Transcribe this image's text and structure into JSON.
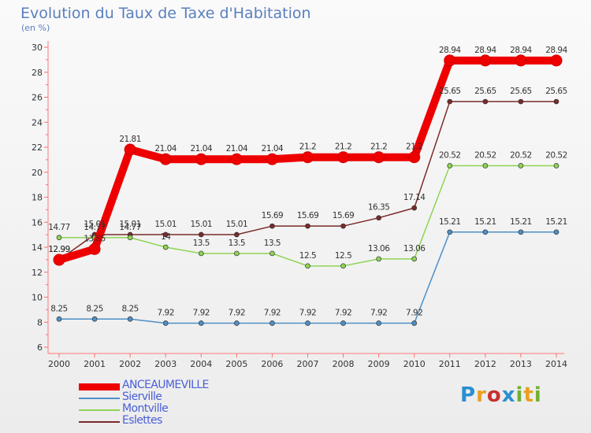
{
  "title": "Evolution du Taux de Taxe d'Habitation",
  "unit_label": "(en %)",
  "brand": {
    "text": "Proxiti",
    "letters": [
      "P",
      "r",
      "o",
      "x",
      "i",
      "t",
      "i"
    ],
    "colors": [
      "#2a8fd0",
      "#e8a020",
      "#c83030",
      "#2a8fd0",
      "#70b030",
      "#e8a020",
      "#70b030"
    ]
  },
  "chart_data": {
    "type": "line",
    "title": "Evolution du Taux de Taxe d'Habitation",
    "ylabel": "(en %)",
    "xlabel": "",
    "x": [
      "2000",
      "2001",
      "2002",
      "2003",
      "2004",
      "2005",
      "2006",
      "2007",
      "2008",
      "2009",
      "2010",
      "2011",
      "2012",
      "2013",
      "2014"
    ],
    "ylim": [
      6,
      30
    ],
    "yticks": [
      6,
      8,
      10,
      12,
      14,
      16,
      18,
      20,
      22,
      24,
      26,
      28,
      30
    ],
    "grid": false,
    "legend_position": "bottom-left",
    "series": [
      {
        "name": "ANCEAUMEVILLE",
        "color": "#ee0000",
        "style": "thick",
        "values": [
          12.99,
          13.85,
          21.81,
          21.04,
          21.04,
          21.04,
          21.04,
          21.2,
          21.2,
          21.2,
          21.2,
          28.94,
          28.94,
          28.94,
          28.94
        ],
        "labels": [
          "12.99",
          "13.85",
          "21.81",
          "21.04",
          "21.04",
          "21.04",
          "21.04",
          "21.2",
          "21.2",
          "21.2",
          "21.2",
          "28.94",
          "28.94",
          "28.94",
          "28.94"
        ]
      },
      {
        "name": "Sierville",
        "color": "#4f8fc6",
        "style": "thin",
        "values": [
          8.25,
          8.25,
          8.25,
          7.92,
          7.92,
          7.92,
          7.92,
          7.92,
          7.92,
          7.92,
          7.92,
          15.21,
          15.21,
          15.21,
          15.21
        ],
        "labels": [
          "8.25",
          "8.25",
          "8.25",
          "7.92",
          "7.92",
          "7.92",
          "7.92",
          "7.92",
          "7.92",
          "7.92",
          "7.92",
          "15.21",
          "15.21",
          "15.21",
          "15.21"
        ]
      },
      {
        "name": "Montville",
        "color": "#8ed455",
        "style": "thin",
        "values": [
          14.77,
          14.77,
          14.77,
          14,
          13.5,
          13.5,
          13.5,
          12.5,
          12.5,
          13.06,
          13.06,
          20.52,
          20.52,
          20.52,
          20.52
        ],
        "labels": [
          "14.77",
          "14.77",
          "14.77",
          "14",
          "13.5",
          "13.5",
          "13.5",
          "12.5",
          "12.5",
          "13.06",
          "13.06",
          "20.52",
          "20.52",
          "20.52",
          "20.52"
        ]
      },
      {
        "name": "Eslettes",
        "color": "#7a2a2a",
        "style": "thin",
        "values": [
          12.99,
          15.01,
          15.01,
          15.01,
          15.01,
          15.01,
          15.69,
          15.69,
          15.69,
          16.35,
          17.14,
          25.65,
          25.65,
          25.65,
          25.65
        ],
        "labels": [
          "12.99",
          "15.01",
          "15.01",
          "15.01",
          "15.01",
          "15.01",
          "15.69",
          "15.69",
          "15.69",
          "16.35",
          "17.14",
          "25.65",
          "25.65",
          "25.65",
          "25.65"
        ]
      }
    ]
  }
}
